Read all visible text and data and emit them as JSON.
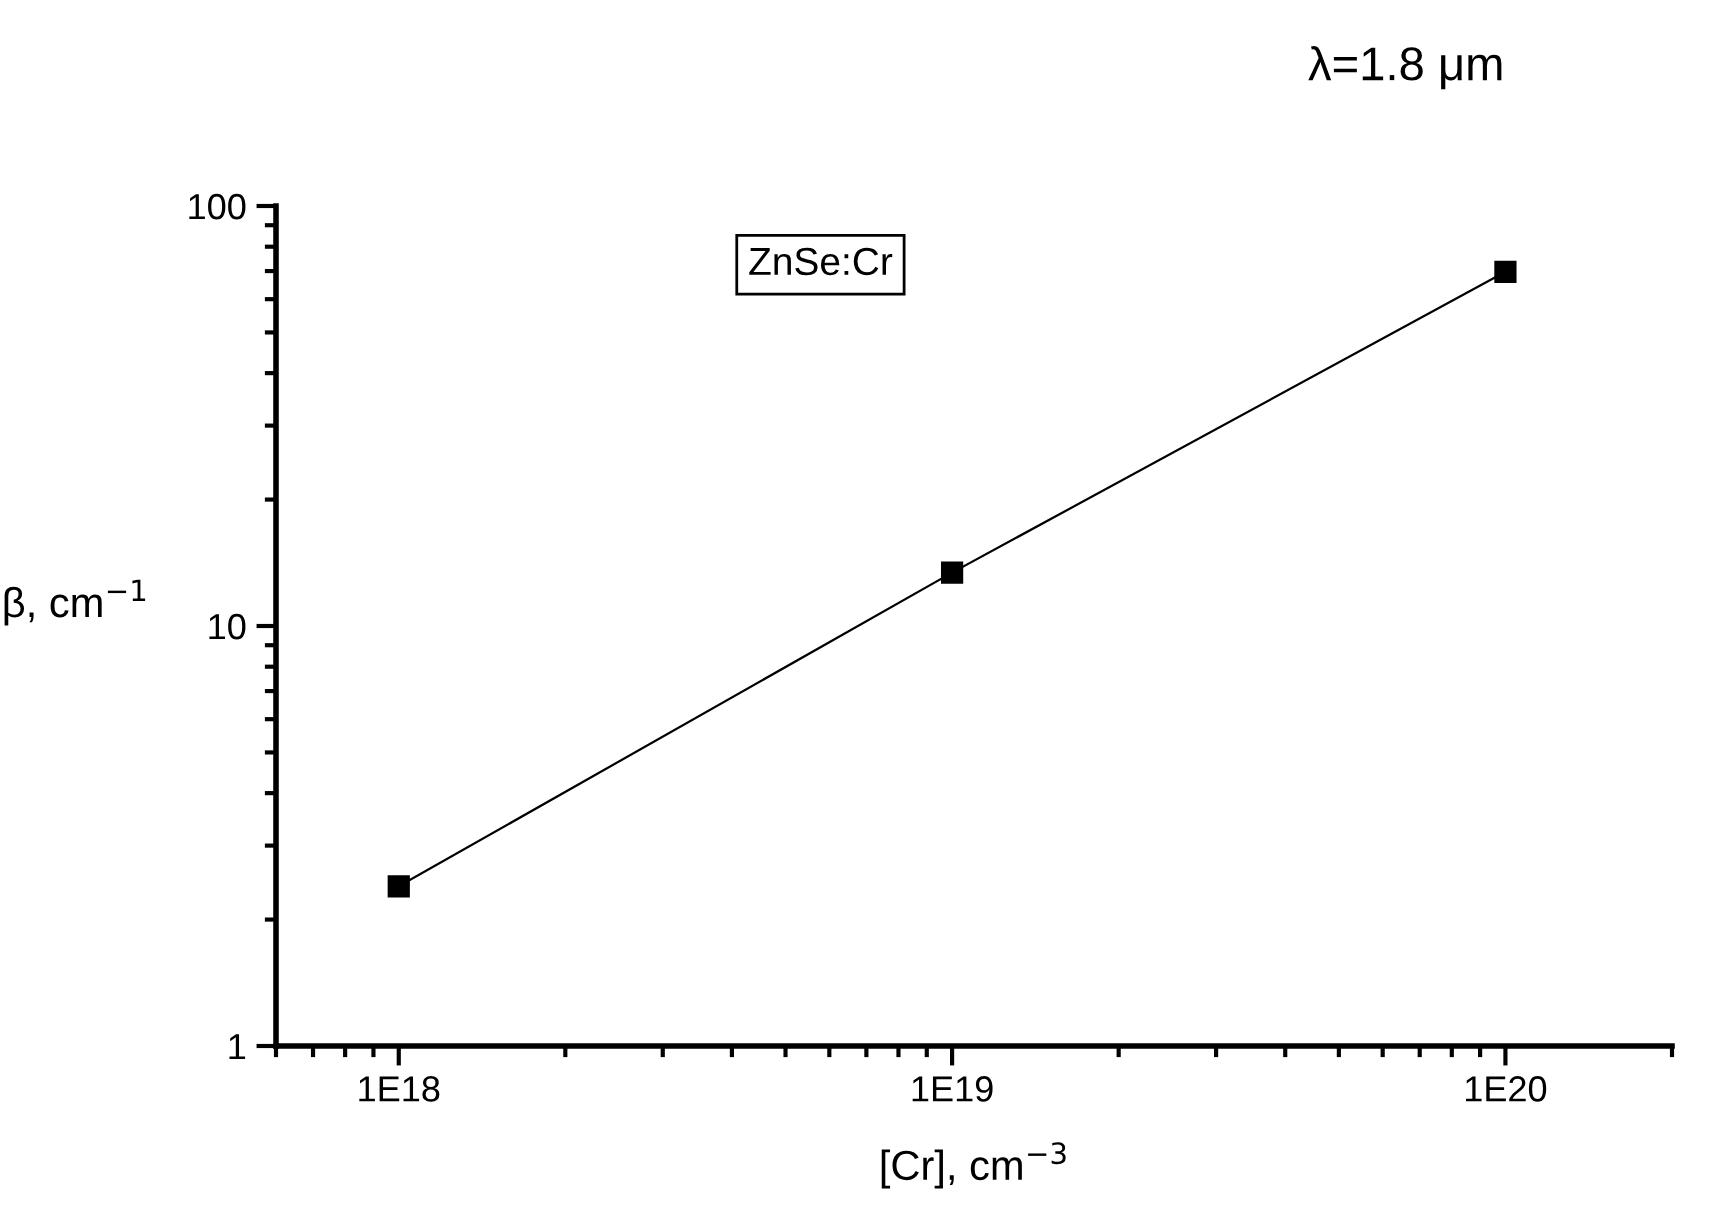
{
  "chart_data": {
    "type": "line",
    "title": "λ=1.8 μm",
    "xlabel": "[Cr], cm$^{−3}$",
    "ylabel": "β, cm$^{−1}$",
    "annotations": [
      "ZnSe:Cr"
    ],
    "x": [
      1e+18,
      1e+19,
      1e+20
    ],
    "series": [
      {
        "color": "#000000",
        "values": [
          2.4,
          13.4,
          69.7
        ]
      }
    ],
    "log": "xy",
    "marker": "square",
    "line_style": "solid",
    "xlim": [
      6e+17,
      2e+20
    ],
    "ylim": [
      1,
      100
    ],
    "xticks": [
      {
        "value": 1e+18,
        "label": "1E18"
      },
      {
        "value": 1e+19,
        "label": "1E19"
      },
      {
        "value": 1e+20,
        "label": "1E20"
      }
    ],
    "yticks": [
      1,
      10,
      100
    ]
  }
}
